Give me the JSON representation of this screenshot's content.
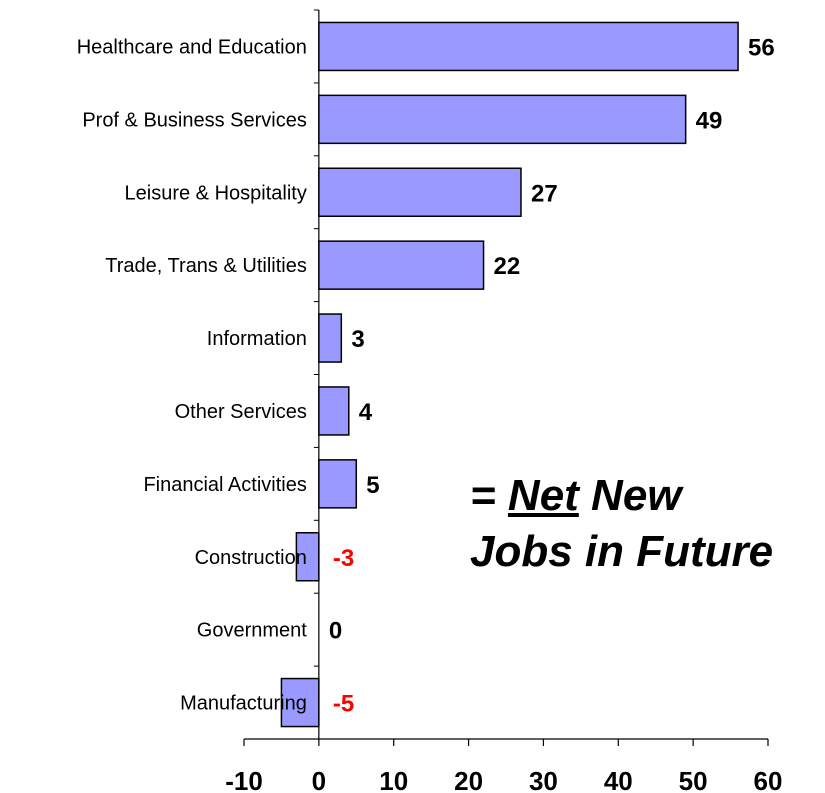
{
  "chart_data": {
    "type": "bar",
    "orientation": "horizontal",
    "categories": [
      "Healthcare and Education",
      "Prof & Business Services",
      "Leisure & Hospitality",
      "Trade, Trans & Utilities",
      "Information",
      "Other Services",
      "Financial Activities",
      "Construction",
      "Government",
      "Manufacturing"
    ],
    "values": [
      56,
      49,
      27,
      22,
      3,
      4,
      5,
      -3,
      0,
      -5
    ],
    "data_labels": [
      "56",
      "49",
      "27",
      "22",
      "3",
      "4",
      "5",
      "-3",
      "0",
      "-5"
    ],
    "xlim": [
      -10,
      60
    ],
    "xticks": [
      -10,
      0,
      10,
      20,
      30,
      40,
      50,
      60
    ],
    "xtick_labels": [
      "-10",
      "0",
      "10",
      "20",
      "30",
      "40",
      "50",
      "60"
    ],
    "grid": false,
    "title": "",
    "xlabel": "",
    "ylabel": "",
    "colors": {
      "bar_fill": "#9999ff",
      "bar_stroke": "#000000",
      "positive_label": "#000000",
      "negative_label": "#ff0000"
    }
  },
  "annotation": {
    "prefix": "= ",
    "emphasis": "Net",
    "rest": " New",
    "line2": "Jobs in Future"
  }
}
